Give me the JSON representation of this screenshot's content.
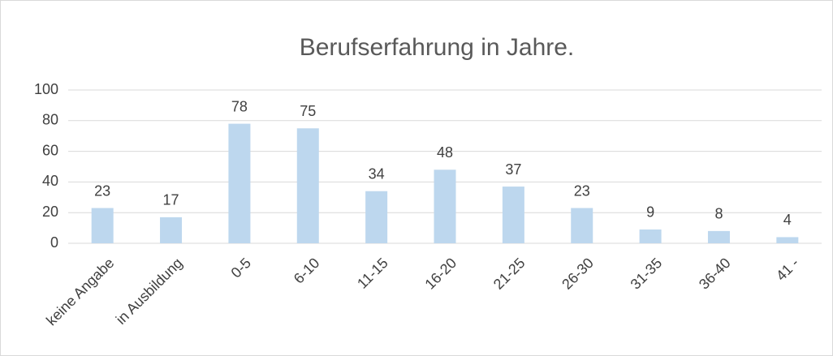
{
  "chart_data": {
    "type": "bar",
    "title": "Berufserfahrung in Jahre.",
    "categories": [
      "keine Angabe",
      "in Ausbildung",
      "0-5",
      "6-10",
      "11-15",
      "16-20",
      "21-25",
      "26-30",
      "31-35",
      "36-40",
      "41 -"
    ],
    "values": [
      23,
      17,
      78,
      75,
      34,
      48,
      37,
      23,
      9,
      8,
      4
    ],
    "color": "#bdd7ee",
    "ylim": [
      0,
      100
    ],
    "yticks": [
      0,
      20,
      40,
      60,
      80,
      100
    ],
    "grid": true
  }
}
